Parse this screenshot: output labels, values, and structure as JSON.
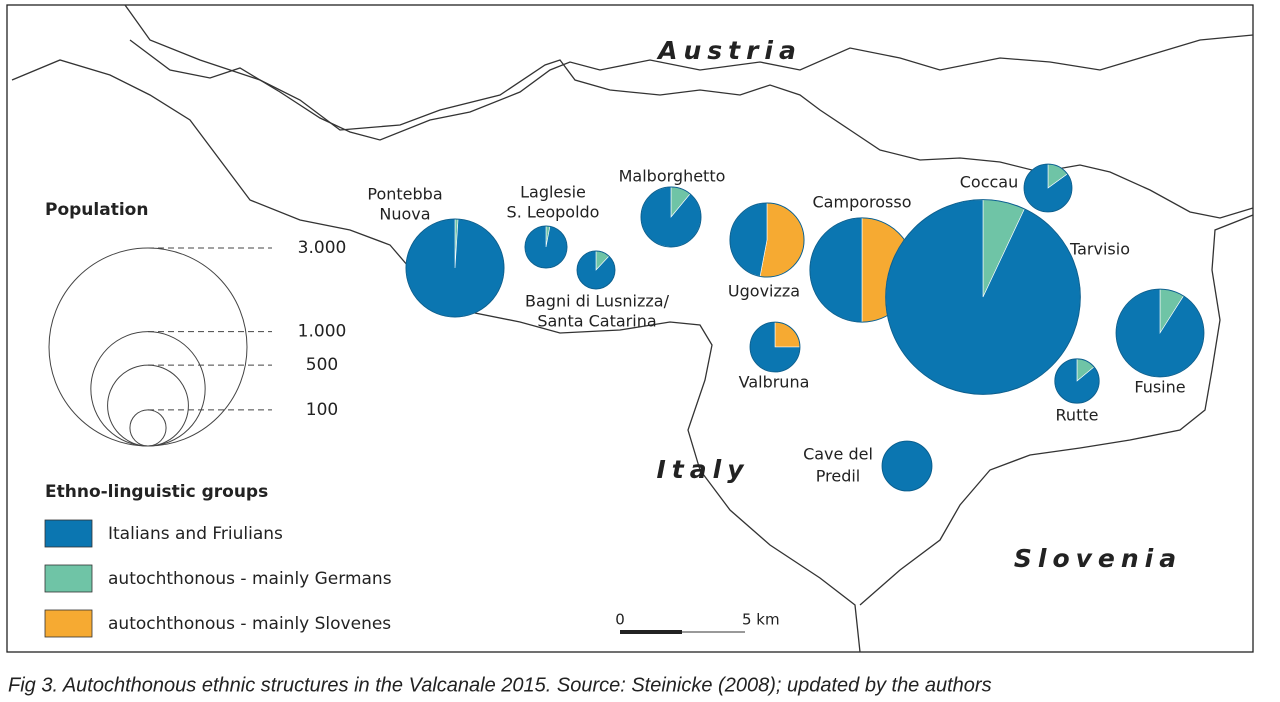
{
  "map": {
    "countries": [
      "Austria",
      "Italy",
      "Slovenia"
    ]
  },
  "legend": {
    "population_title": "Population",
    "population_sizes": [
      {
        "value": 3000,
        "label": "3.000"
      },
      {
        "value": 1000,
        "label": "1.000"
      },
      500,
      100
    ],
    "groups_title": "Ethno-linguistic groups",
    "groups": [
      {
        "name": "Italians and Friulians",
        "color": "#0b76b1"
      },
      {
        "name": "autochthonous - mainly Germans",
        "color": "#6fc4a6"
      },
      {
        "name": "autochthonous - mainly Slovenes",
        "color": "#f6aa32"
      }
    ]
  },
  "places": [
    {
      "label": [
        "Pontebba",
        "Nuova"
      ],
      "population": 735,
      "shares": [
        99,
        1,
        0
      ]
    },
    {
      "label": [
        "Laglesie",
        "S. Leopoldo"
      ],
      "population": 135,
      "shares": [
        97,
        3,
        0
      ]
    },
    {
      "label": [
        "Bagni di Lusnizza/",
        "Santa Catarina"
      ],
      "population": 110,
      "shares": [
        88,
        12,
        0
      ]
    },
    {
      "label": [
        "Malborghetto"
      ],
      "population": 275,
      "shares": [
        89,
        11,
        0
      ]
    },
    {
      "label": [
        "Ugovizza"
      ],
      "population": 420,
      "shares": [
        47,
        0,
        53
      ]
    },
    {
      "label": [
        "Valbruna"
      ],
      "population": 190,
      "shares": [
        75,
        0,
        25
      ]
    },
    {
      "label": [
        "Camporosso"
      ],
      "population": 830,
      "shares": [
        50,
        0,
        50
      ]
    },
    {
      "label": [
        "Coccau"
      ],
      "population": 175,
      "shares": [
        85,
        15,
        0
      ]
    },
    {
      "label": [
        "Tarvisio"
      ],
      "population": 2900,
      "shares": [
        93,
        7,
        0
      ]
    },
    {
      "label": [
        "Fusine"
      ],
      "population": 590,
      "shares": [
        91,
        9,
        0
      ]
    },
    {
      "label": [
        "Rutte"
      ],
      "population": 150,
      "shares": [
        86,
        14,
        0
      ]
    },
    {
      "label": [
        "Cave del",
        "Predil"
      ],
      "population": 190,
      "shares": [
        100,
        0,
        0
      ]
    }
  ],
  "scale_bar": {
    "start": "0",
    "end": "5 km"
  },
  "caption": "Fig 3. Autochthonous ethnic structures in the Valcanale 2015. Source: Steinicke (2008); updated by the authors"
}
